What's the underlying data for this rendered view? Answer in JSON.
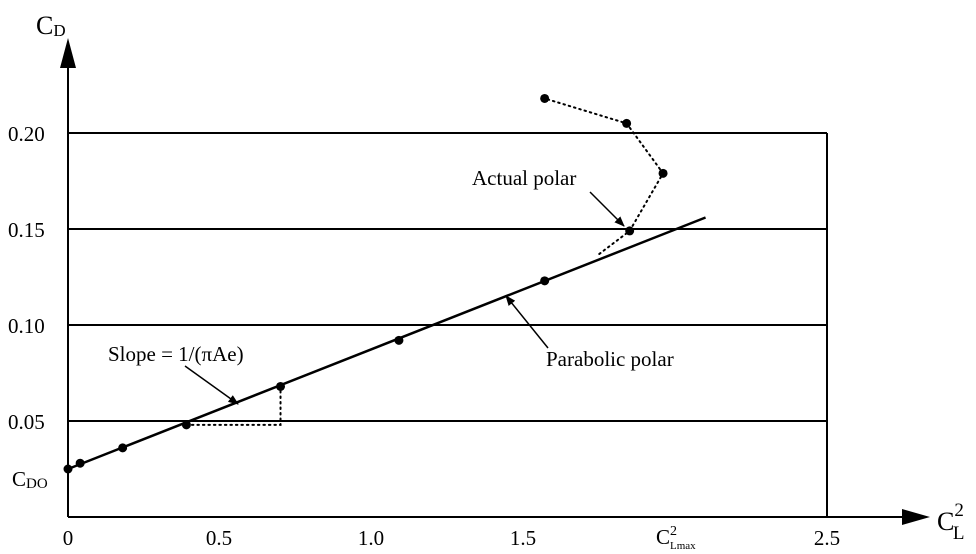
{
  "chart_data": {
    "type": "line",
    "title": "",
    "axes": {
      "y": {
        "label": {
          "base": "C",
          "subscript": "D"
        },
        "ticks": [
          "0.20",
          "0.15",
          "0.10",
          "0.05"
        ],
        "tick_values": [
          0.2,
          0.15,
          0.1,
          0.05
        ],
        "intercept_label": {
          "base": "C",
          "subscript": "DO"
        },
        "range": [
          0.0,
          0.25
        ]
      },
      "x": {
        "label": {
          "base": "C",
          "subscript": "L",
          "superscript": "2"
        },
        "ticks": [
          "0",
          "0.5",
          "1.0",
          "1.5",
          "2.5"
        ],
        "tick_values": [
          0,
          0.5,
          1.0,
          1.5,
          2.5
        ],
        "special_tick": {
          "base": "C",
          "superscript": "2",
          "subscript": "Lmax",
          "value": 2.0
        },
        "range": [
          0,
          2.8
        ]
      }
    },
    "grid": "horizontal lines at 0.05, 0.10, 0.15, 0.20; right border at x = 2.5",
    "series": [
      {
        "name": "Parabolic polar",
        "style": "solid",
        "x": [
          0,
          2.1
        ],
        "y": [
          0.025,
          0.156
        ]
      },
      {
        "name": "Actual polar",
        "style": "dotted",
        "x": [
          0,
          0.04,
          0.18,
          0.39,
          0.7,
          1.09,
          1.57,
          1.85,
          1.96,
          1.84,
          1.57
        ],
        "y": [
          0.025,
          0.028,
          0.036,
          0.048,
          0.068,
          0.092,
          0.123,
          0.149,
          0.179,
          0.205,
          0.218
        ]
      }
    ],
    "annotations": [
      {
        "text": "Actual polar",
        "points_to": "Actual polar"
      },
      {
        "text": "Parabolic polar",
        "points_to": "Parabolic polar"
      },
      {
        "text": "Slope = 1/(πAe)",
        "points_to": "Parabolic polar"
      }
    ],
    "slope_triangle": {
      "x": [
        0.39,
        0.7
      ],
      "y": [
        0.048,
        0.068
      ]
    }
  }
}
